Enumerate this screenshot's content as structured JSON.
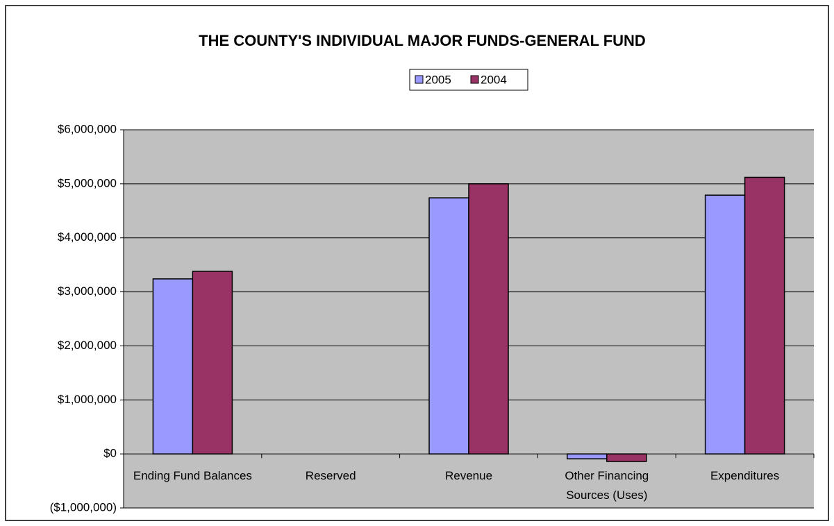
{
  "chart_data": {
    "type": "bar",
    "title": "THE COUNTY'S INDIVIDUAL MAJOR FUNDS-GENERAL FUND",
    "categories": [
      "Ending Fund Balances",
      "Reserved",
      "Revenue",
      "Other Financing Sources (Uses)",
      "Expenditures"
    ],
    "series": [
      {
        "name": "2005",
        "color": "#9999ff",
        "values": [
          3240000,
          0,
          4740000,
          -90000,
          4790000
        ]
      },
      {
        "name": "2004",
        "color": "#993366",
        "values": [
          3380000,
          0,
          5000000,
          -140000,
          5120000
        ]
      }
    ],
    "ylim": [
      -1000000,
      6000000
    ],
    "yticks": [
      {
        "value": -1000000,
        "label": "($1,000,000)"
      },
      {
        "value": 0,
        "label": "$0"
      },
      {
        "value": 1000000,
        "label": "$1,000,000"
      },
      {
        "value": 2000000,
        "label": "$2,000,000"
      },
      {
        "value": 3000000,
        "label": "$3,000,000"
      },
      {
        "value": 4000000,
        "label": "$4,000,000"
      },
      {
        "value": 5000000,
        "label": "$5,000,000"
      },
      {
        "value": 6000000,
        "label": "$6,000,000"
      }
    ],
    "grid": true,
    "legend": "top"
  }
}
